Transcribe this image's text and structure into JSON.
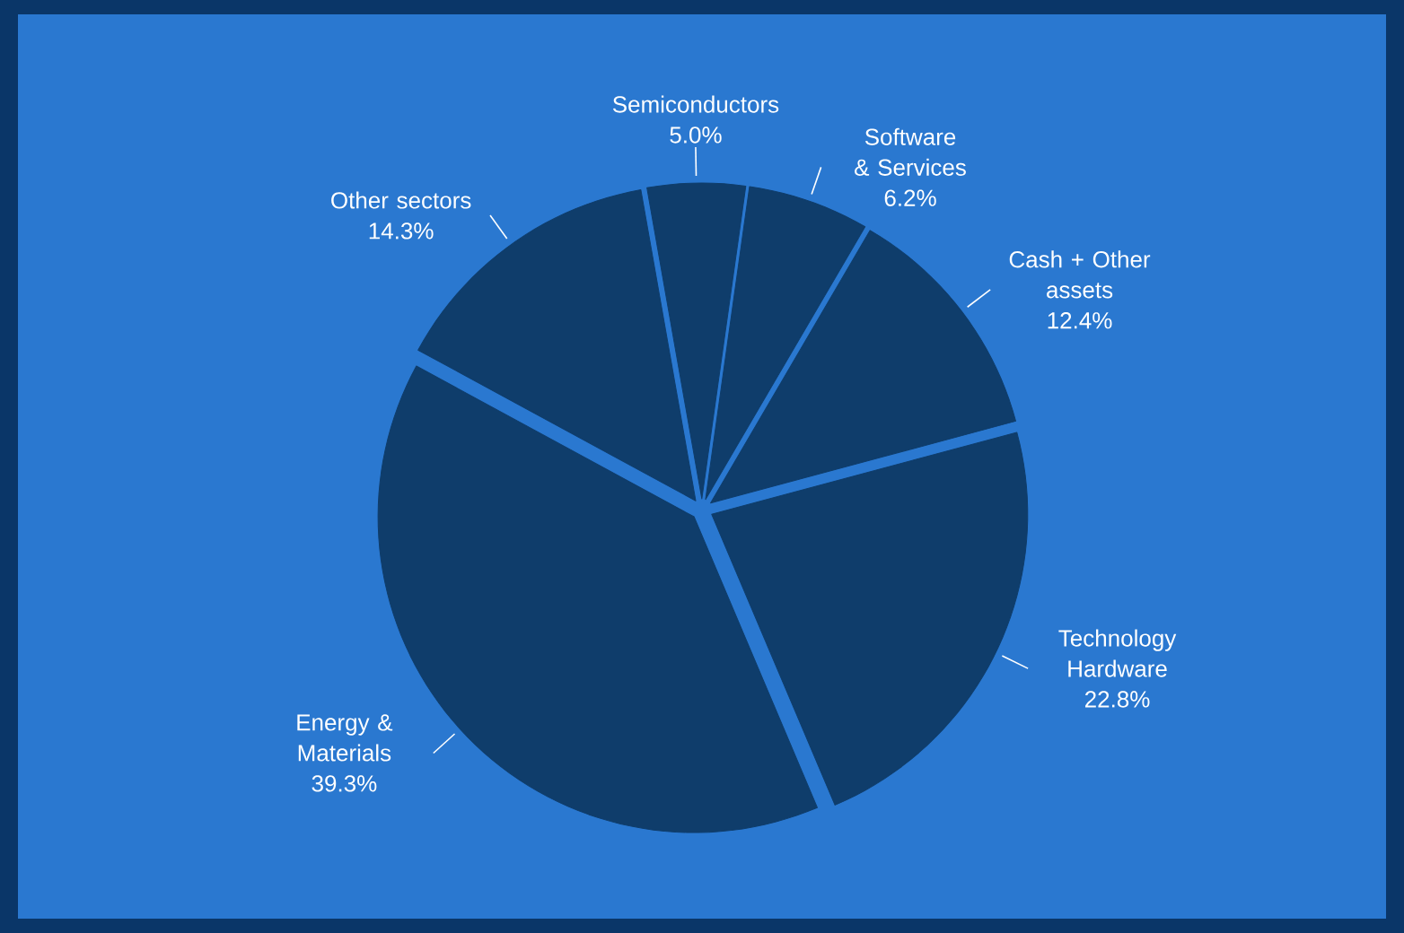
{
  "chart_data": {
    "type": "pie",
    "categories": [
      "Semiconductors",
      "Software & Services",
      "Cash + Other assets",
      "Technology Hardware",
      "Energy & Materials",
      "Other sectors"
    ],
    "values": [
      5.0,
      6.2,
      12.4,
      22.8,
      39.3,
      14.3
    ],
    "value_labels": [
      "5.0%",
      "6.2%",
      "12.4%",
      "22.8%",
      "39.3%",
      "14.3%"
    ],
    "colors": [
      "#0f3d6b",
      "#0f3d6b",
      "#0f3d6b",
      "#0f3d6b",
      "#0f3d6b",
      "#0f3d6b"
    ]
  }
}
